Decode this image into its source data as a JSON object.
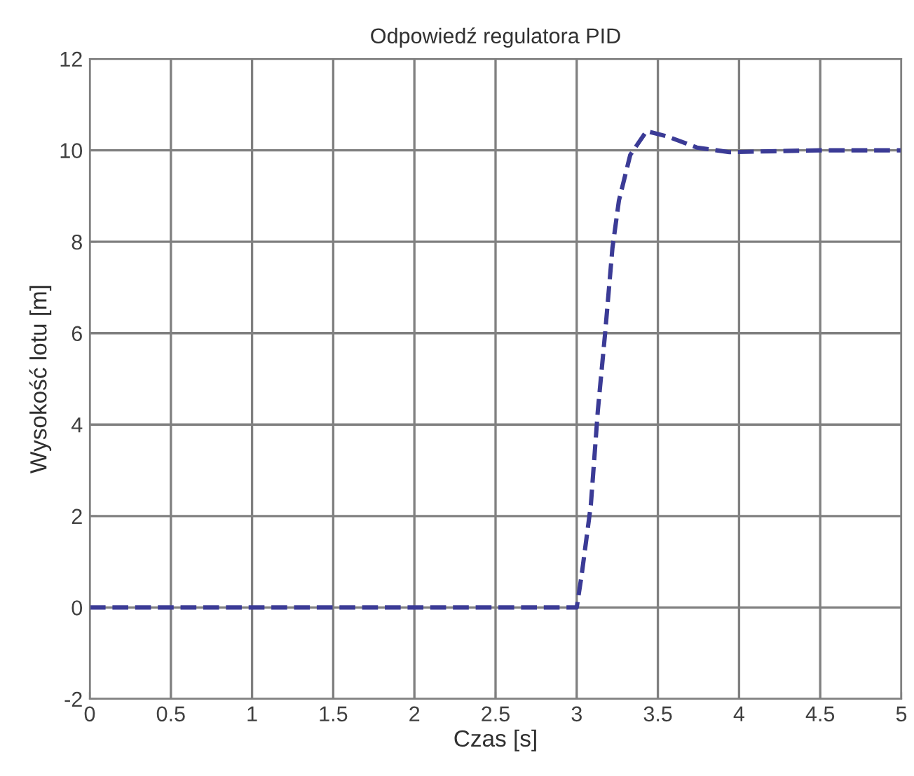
{
  "chart_data": {
    "type": "line",
    "title": "Odpowiedź regulatora PID",
    "xlabel": "Czas [s]",
    "ylabel": "Wysokość lotu [m]",
    "series": [
      {
        "color": "#3b3b96",
        "x": [
          0,
          1,
          2,
          3.0,
          3.03,
          3.087,
          3.13,
          3.175,
          3.22,
          3.26,
          3.33,
          3.43,
          3.56,
          3.74,
          3.94,
          4.5,
          5
        ],
        "values": [
          0,
          0,
          0,
          0,
          0.7,
          2.24,
          4.3,
          6.0,
          7.86,
          8.9,
          9.9,
          10.42,
          10.3,
          10.06,
          9.96,
          10,
          10
        ]
      }
    ],
    "xlim": [
      0,
      5
    ],
    "xticks": [
      0,
      0.5,
      1,
      1.5,
      2,
      2.5,
      3,
      3.5,
      4,
      4.5,
      5
    ],
    "ylim": [
      -2,
      12
    ],
    "yticks": [
      -2,
      0,
      2,
      4,
      6,
      8,
      10,
      12
    ],
    "grid": true,
    "line_style": "dashed",
    "marker": "none"
  }
}
